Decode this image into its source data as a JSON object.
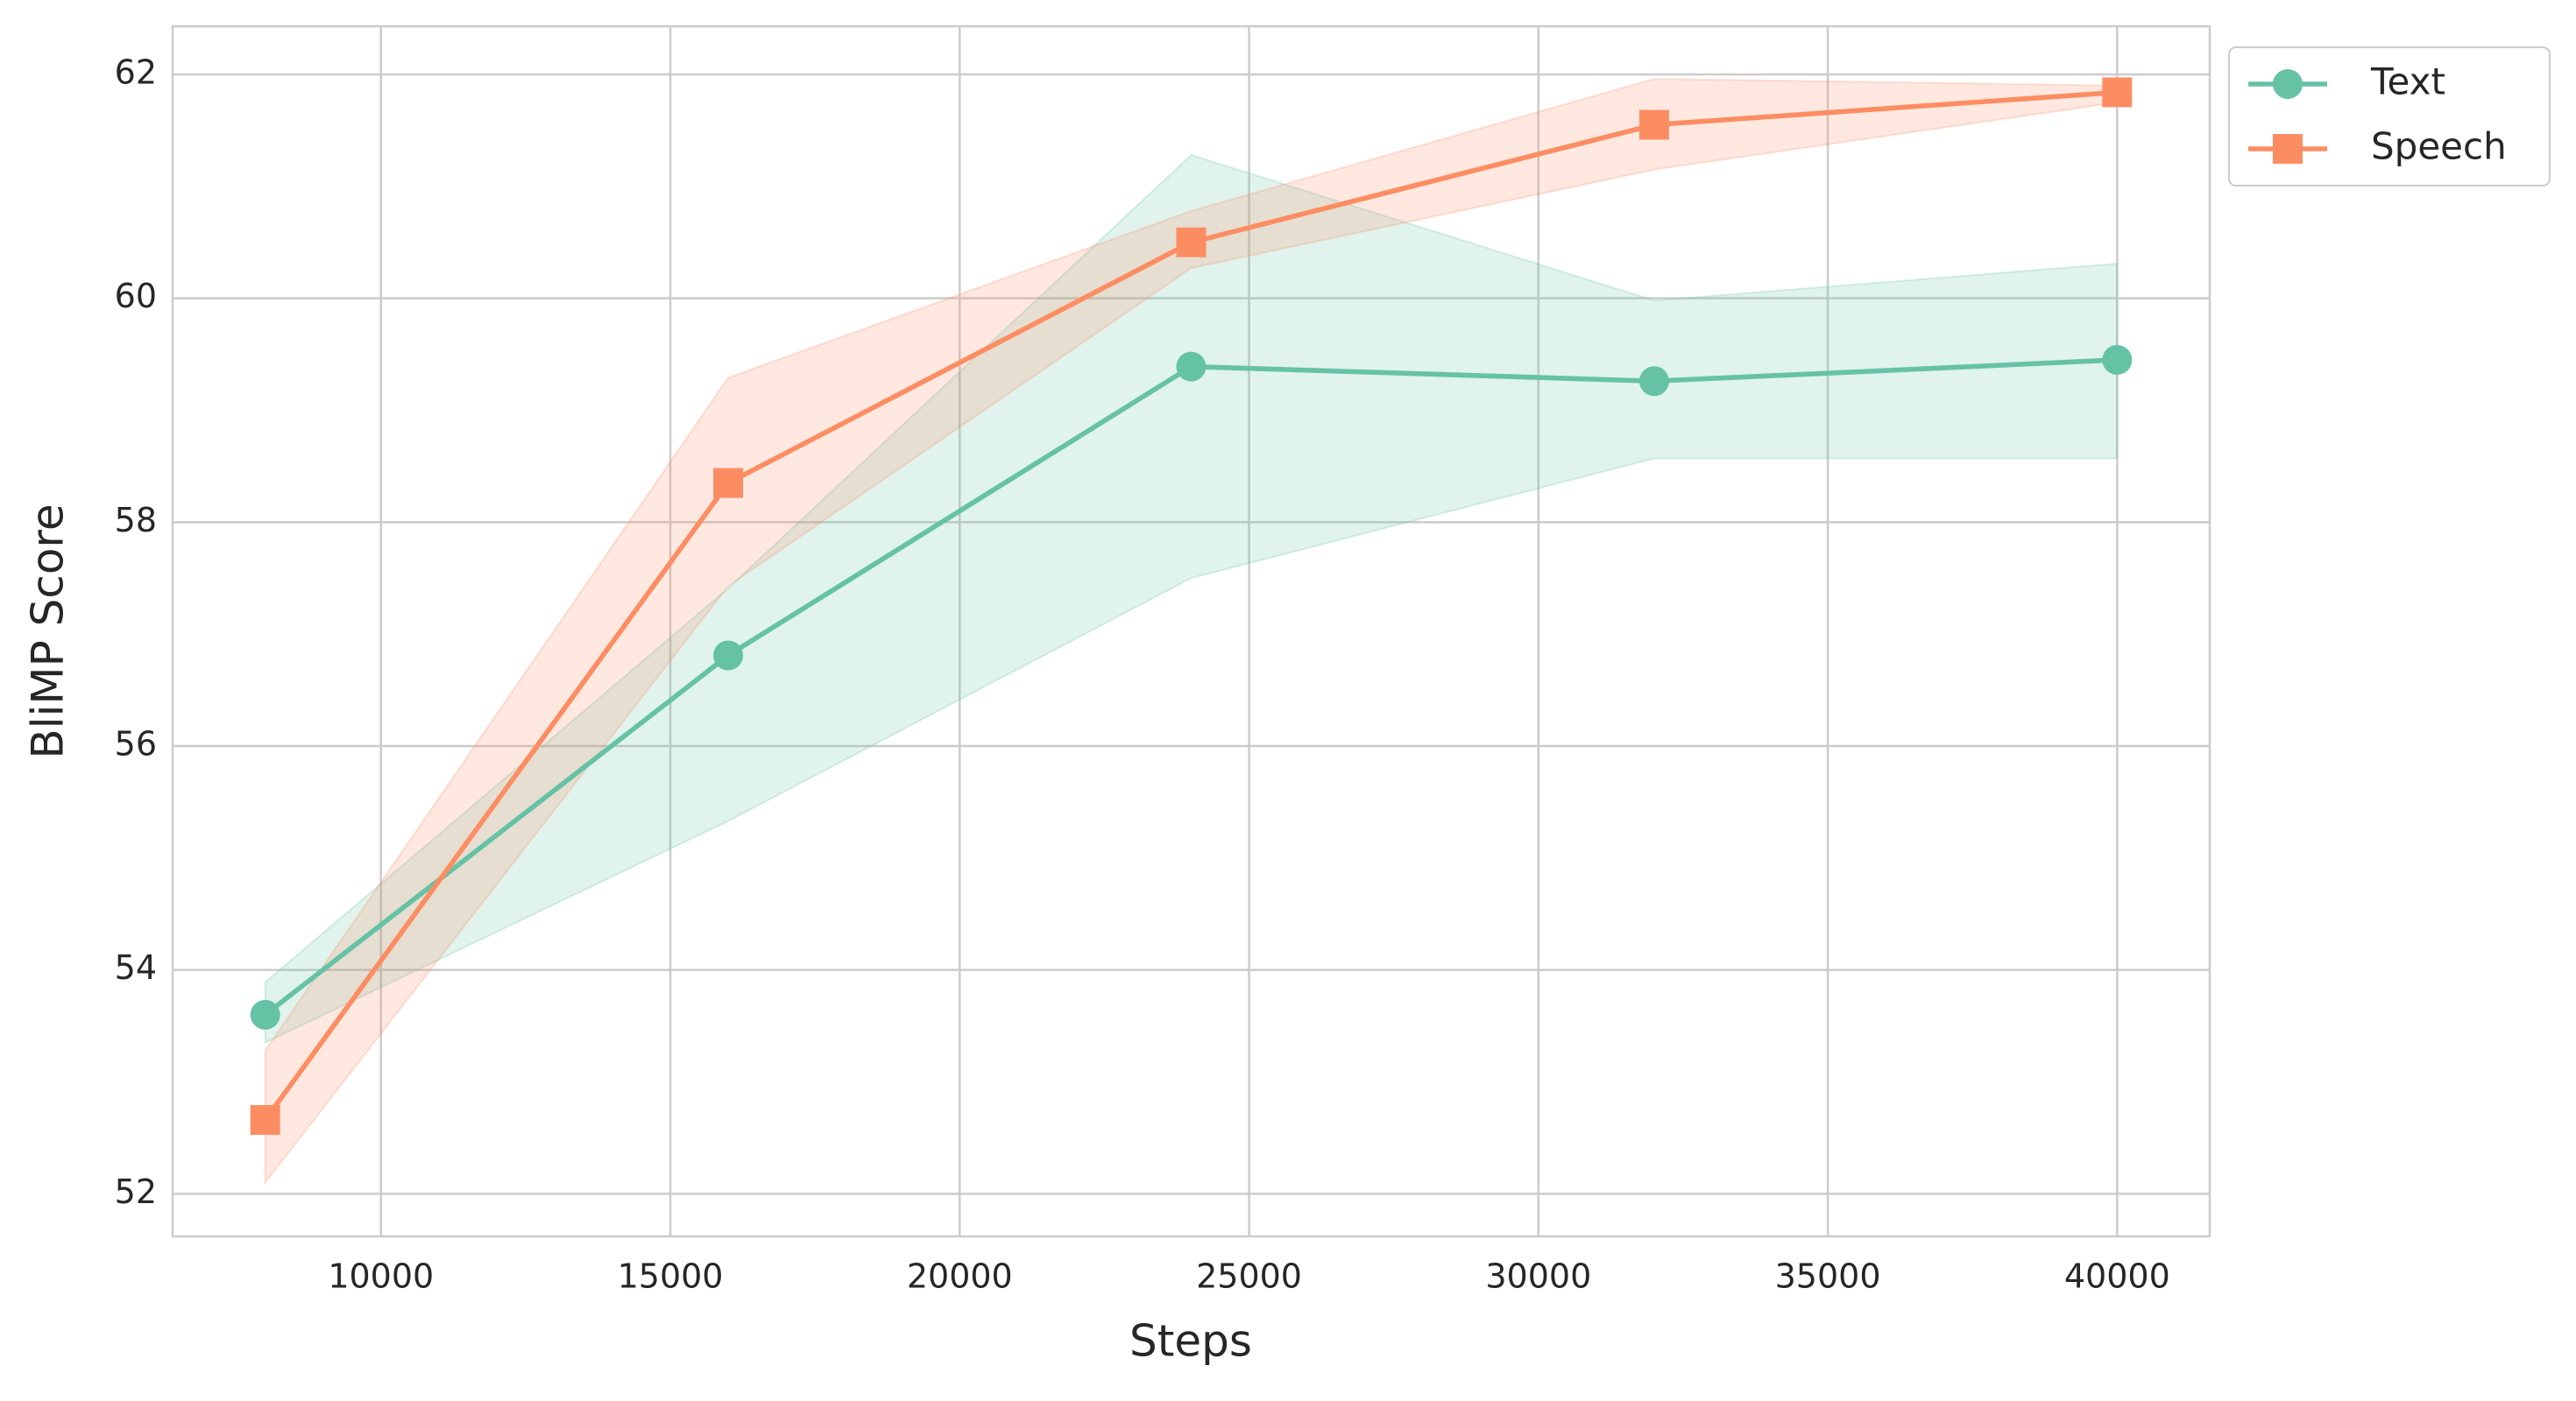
{
  "chart_data": {
    "type": "line",
    "xlabel": "Steps",
    "ylabel": "BliMP Score",
    "x": [
      8000,
      16000,
      24000,
      32000,
      40000
    ],
    "series": [
      {
        "name": "Text",
        "color": "#66c2a5",
        "marker": "circle",
        "values": [
          53.6,
          56.81,
          59.39,
          59.26,
          59.45
        ],
        "lower": [
          53.35,
          55.33,
          57.5,
          58.57,
          58.57
        ],
        "upper": [
          53.89,
          57.41,
          61.28,
          59.98,
          60.31
        ]
      },
      {
        "name": "Speech",
        "color": "#fc8d62",
        "marker": "square",
        "values": [
          52.66,
          58.35,
          60.5,
          61.55,
          61.84
        ],
        "lower": [
          52.1,
          57.43,
          60.27,
          61.15,
          61.75
        ],
        "upper": [
          53.28,
          59.29,
          60.78,
          61.96,
          61.9
        ]
      }
    ],
    "xlim": [
      6400,
      41600
    ],
    "ylim": [
      51.62,
      62.43
    ],
    "xticks": [
      10000,
      15000,
      20000,
      25000,
      30000,
      35000,
      40000
    ],
    "yticks": [
      52,
      54,
      56,
      58,
      60,
      62
    ],
    "grid": true,
    "legend": "outside-upper-right"
  }
}
